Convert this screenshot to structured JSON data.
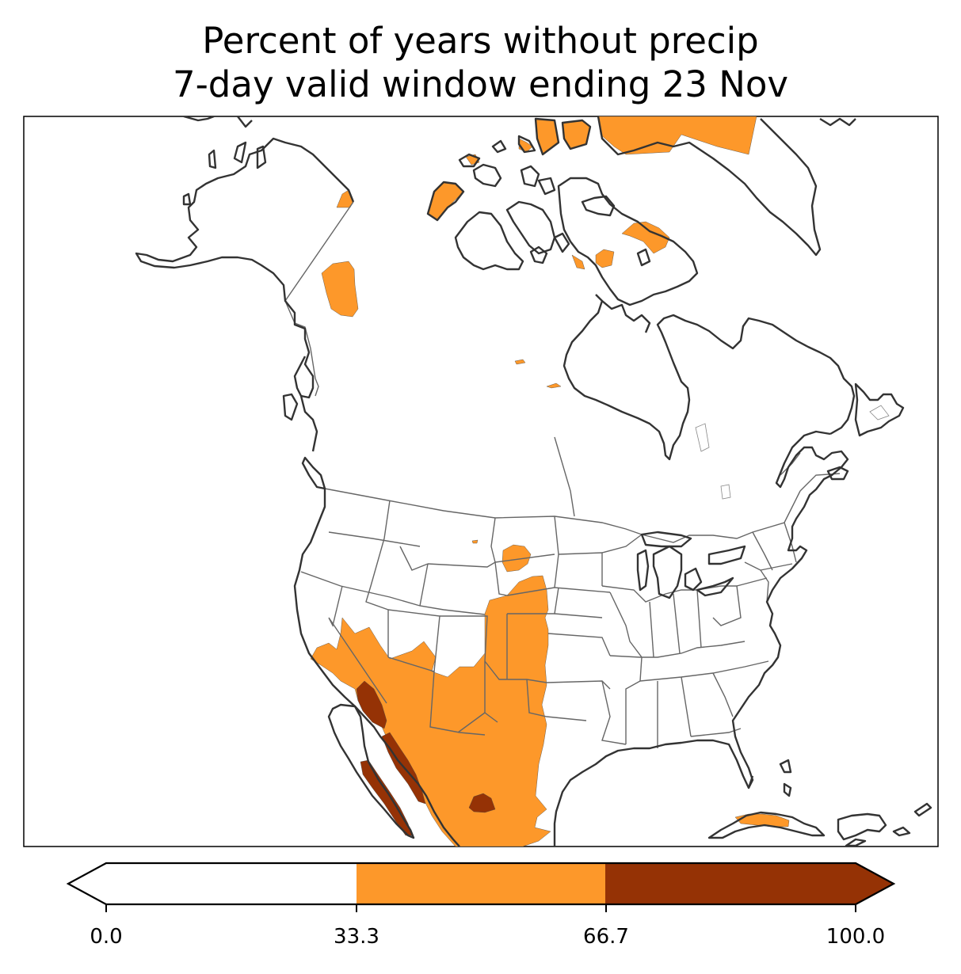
{
  "title": {
    "line1": "Percent of years without precip",
    "line2": "7-day valid window ending 23 Nov"
  },
  "colorbar": {
    "ticks": [
      "0.0",
      "33.3",
      "66.7",
      "100.0"
    ],
    "bins": [
      {
        "range": [
          0.0,
          33.3
        ],
        "color": "#ffffff"
      },
      {
        "range": [
          33.3,
          66.7
        ],
        "color": "#fd982a"
      },
      {
        "range": [
          66.7,
          100.0
        ],
        "color": "#953205"
      }
    ],
    "extend": "both"
  },
  "colors": {
    "coastline": "#333333",
    "borders": "#666666",
    "low": "#ffffff",
    "mid": "#fd982a",
    "high": "#953205"
  }
}
